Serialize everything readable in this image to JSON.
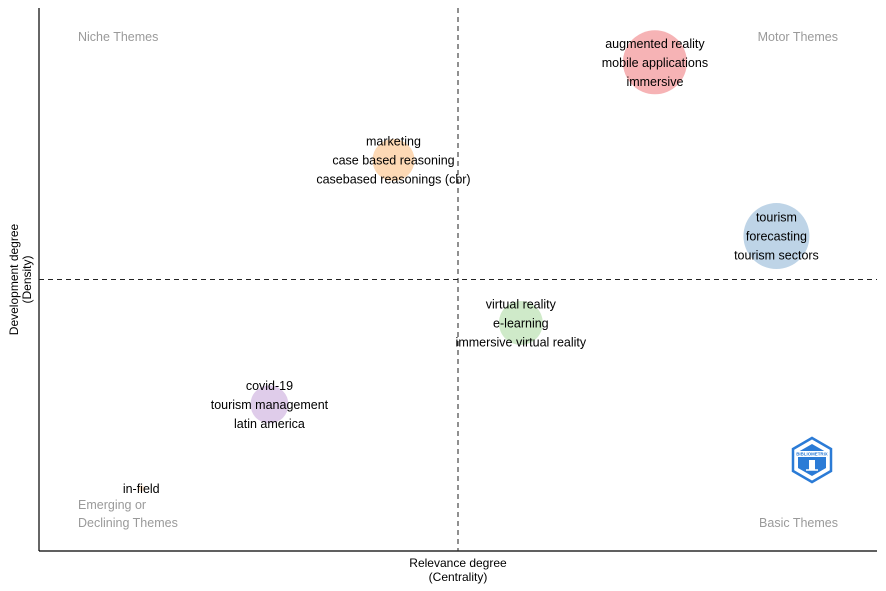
{
  "chart_data": {
    "type": "scatter",
    "xlabel": [
      "Relevance degree",
      "(Centrality)"
    ],
    "ylabel": [
      "Development degree",
      "(Density)"
    ],
    "quadrants": {
      "top_left": "Niche Themes",
      "top_right": "Motor Themes",
      "bottom_left": [
        "Emerging or",
        "Declining Themes"
      ],
      "bottom_right": "Basic Themes"
    },
    "xlim": [
      0,
      100
    ],
    "ylim": [
      0,
      100
    ],
    "x_divider": 50,
    "y_divider": 50,
    "grid": false,
    "clusters": [
      {
        "labels": [
          "augmented reality",
          "mobile applications",
          "immersive"
        ],
        "x": 73.5,
        "y": 90,
        "size": 32,
        "color": "#f4a6a8"
      },
      {
        "labels": [
          "marketing",
          "case based reasoning",
          "casebased reasonings (cbr)"
        ],
        "x": 42.3,
        "y": 72,
        "size": 21,
        "color": "#fdd2a8"
      },
      {
        "labels": [
          "tourism",
          "forecasting",
          "tourism sectors"
        ],
        "x": 88,
        "y": 58,
        "size": 33,
        "color": "#b3cde3"
      },
      {
        "labels": [
          "virtual reality",
          "e-learning",
          "immersive virtual reality"
        ],
        "x": 57.5,
        "y": 42,
        "size": 22,
        "color": "#c7e6c0"
      },
      {
        "labels": [
          "covid-19",
          "tourism management",
          "latin america"
        ],
        "x": 27.5,
        "y": 27,
        "size": 19,
        "color": "#d9c3e6"
      },
      {
        "labels": [
          "in-field"
        ],
        "x": 12.2,
        "y": 11.5,
        "size": 3,
        "color": "#fde0c5"
      }
    ],
    "logo_text": "BIBLIOMETRIX"
  }
}
